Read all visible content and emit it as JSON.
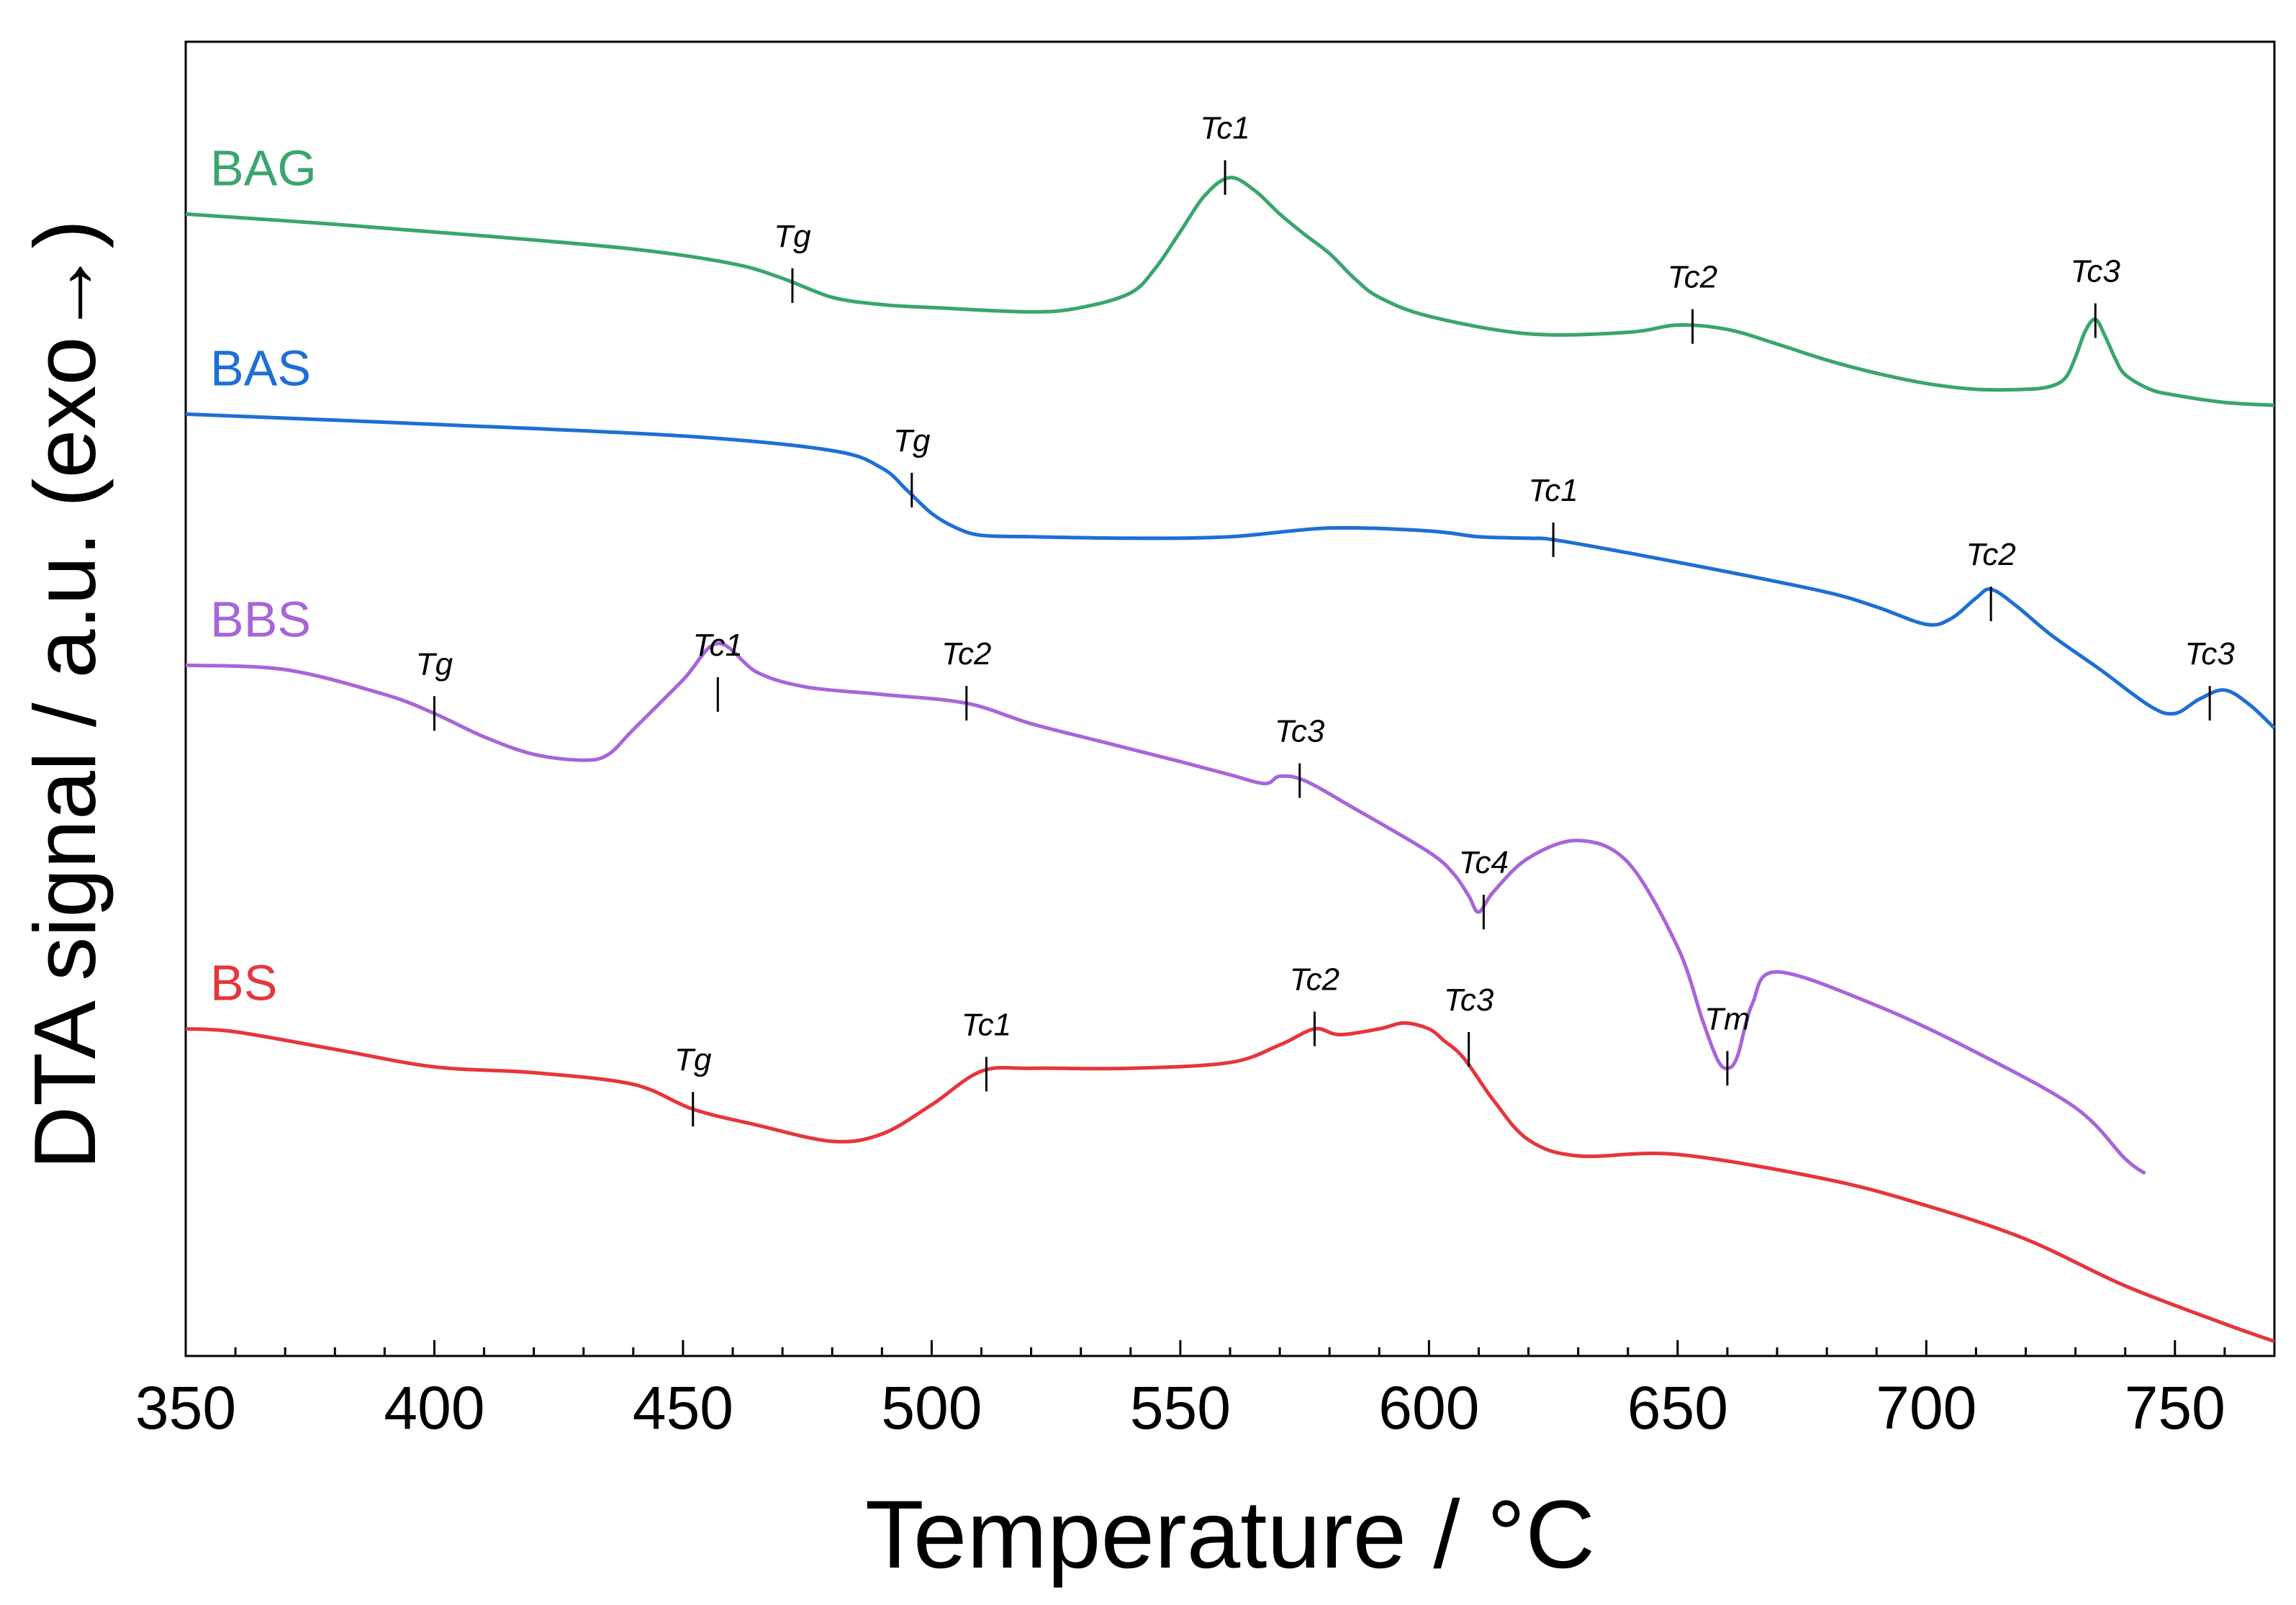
{
  "chart_data": {
    "type": "line",
    "title": "",
    "xlabel": "Temperature / °C",
    "ylabel": "DTA signal / a.u. (exo→)",
    "xlim": [
      350,
      770
    ],
    "ylim": [
      0,
      900
    ],
    "x_ticks": [
      "350",
      "400",
      "450",
      "500",
      "550",
      "600",
      "650",
      "700",
      "750"
    ],
    "legend": "inline-left",
    "grid": false,
    "series": [
      {
        "name": "BAG",
        "color": "#3aa56d",
        "x": [
          350,
          380,
          410,
          440,
          460,
          470,
          480,
          490,
          500,
          520,
          530,
          540,
          545,
          550,
          555,
          560,
          565,
          570,
          575,
          580,
          585,
          590,
          600,
          620,
          640,
          650,
          660,
          670,
          680,
          690,
          700,
          710,
          720,
          725,
          728,
          730,
          732,
          734,
          736,
          738,
          740,
          745,
          750,
          760,
          770
        ],
        "y": [
          782,
          775,
          767,
          758,
          748,
          738,
          725,
          720,
          718,
          715,
          718,
          728,
          745,
          770,
          795,
          807,
          798,
          782,
          768,
          755,
          738,
          725,
          712,
          700,
          701,
          706,
          703,
          693,
          682,
          673,
          666,
          662,
          662,
          664,
          670,
          684,
          702,
          710,
          698,
          683,
          672,
          662,
          658,
          653,
          651
        ],
        "annotations": [
          {
            "label": "Tg",
            "x": 472,
            "y": 733
          },
          {
            "label": "Tc1",
            "x": 559,
            "y": 807
          },
          {
            "label": "Tc2",
            "x": 653,
            "y": 705
          },
          {
            "label": "Tc3",
            "x": 734,
            "y": 709
          }
        ]
      },
      {
        "name": "BAS",
        "color": "#1e6fd4",
        "x": [
          350,
          400,
          450,
          480,
          490,
          495,
          500,
          505,
          510,
          520,
          540,
          560,
          580,
          600,
          610,
          620,
          625,
          640,
          660,
          680,
          690,
          700,
          705,
          710,
          713,
          718,
          725,
          735,
          745,
          750,
          755,
          760,
          765,
          770
        ],
        "y": [
          645,
          638,
          630,
          620,
          608,
          593,
          577,
          567,
          562,
          561,
          560,
          561,
          567,
          565,
          561,
          560,
          559,
          550,
          537,
          523,
          513,
          501,
          505,
          519,
          525,
          514,
          494,
          470,
          445,
          440,
          450,
          456,
          446,
          430
        ],
        "annotations": [
          {
            "label": "Tg",
            "x": 496,
            "y": 593
          },
          {
            "label": "Tc1",
            "x": 625,
            "y": 559
          },
          {
            "label": "Tc2",
            "x": 713,
            "y": 515
          },
          {
            "label": "Tc3",
            "x": 757,
            "y": 447
          }
        ]
      },
      {
        "name": "BBS",
        "color": "#a865d8",
        "x": [
          350,
          370,
          390,
          400,
          410,
          420,
          430,
          435,
          440,
          450,
          457,
          465,
          475,
          490,
          507,
          520,
          535,
          550,
          560,
          567,
          570,
          575,
          585,
          600,
          605,
          608,
          610,
          613,
          620,
          630,
          640,
          650,
          655,
          658,
          660,
          662,
          665,
          670,
          690,
          710,
          730,
          740,
          744
        ],
        "y": [
          473,
          470,
          453,
          440,
          424,
          412,
          408,
          412,
          429,
          463,
          488,
          468,
          458,
          453,
          447,
          433,
          420,
          407,
          398,
          392,
          397,
          394,
          375,
          345,
          330,
          315,
          304,
          318,
          341,
          353,
          338,
          280,
          230,
          203,
          197,
          205,
          241,
          263,
          240,
          208,
          170,
          135,
          125
        ],
        "annotations": [
          {
            "label": "Tg",
            "x": 400,
            "y": 440
          },
          {
            "label": "Tc1",
            "x": 457,
            "y": 453
          },
          {
            "label": "Tc2",
            "x": 507,
            "y": 447
          },
          {
            "label": "Tc3",
            "x": 574,
            "y": 394
          },
          {
            "label": "Tc4",
            "x": 611,
            "y": 304
          },
          {
            "label": "Tm",
            "x": 660,
            "y": 197
          }
        ]
      },
      {
        "name": "BS",
        "color": "#e5363c",
        "x": [
          350,
          360,
          380,
          400,
          420,
          440,
          452,
          465,
          480,
          490,
          500,
          510,
          520,
          540,
          560,
          570,
          577,
          582,
          590,
          595,
          600,
          603,
          607,
          613,
          620,
          630,
          650,
          680,
          700,
          720,
          740,
          760,
          770
        ],
        "y": [
          224,
          222,
          210,
          198,
          194,
          186,
          169,
          158,
          147,
          152,
          172,
          195,
          197,
          197,
          201,
          213,
          224,
          220,
          224,
          228,
          224,
          216,
          204,
          175,
          148,
          137,
          138,
          121,
          103,
          80,
          48,
          22,
          10
        ],
        "annotations": [
          {
            "label": "Tg",
            "x": 452,
            "y": 169
          },
          {
            "label": "Tc1",
            "x": 511,
            "y": 193
          },
          {
            "label": "Tc2",
            "x": 577,
            "y": 224
          },
          {
            "label": "Tc3",
            "x": 608,
            "y": 210
          }
        ]
      }
    ]
  }
}
